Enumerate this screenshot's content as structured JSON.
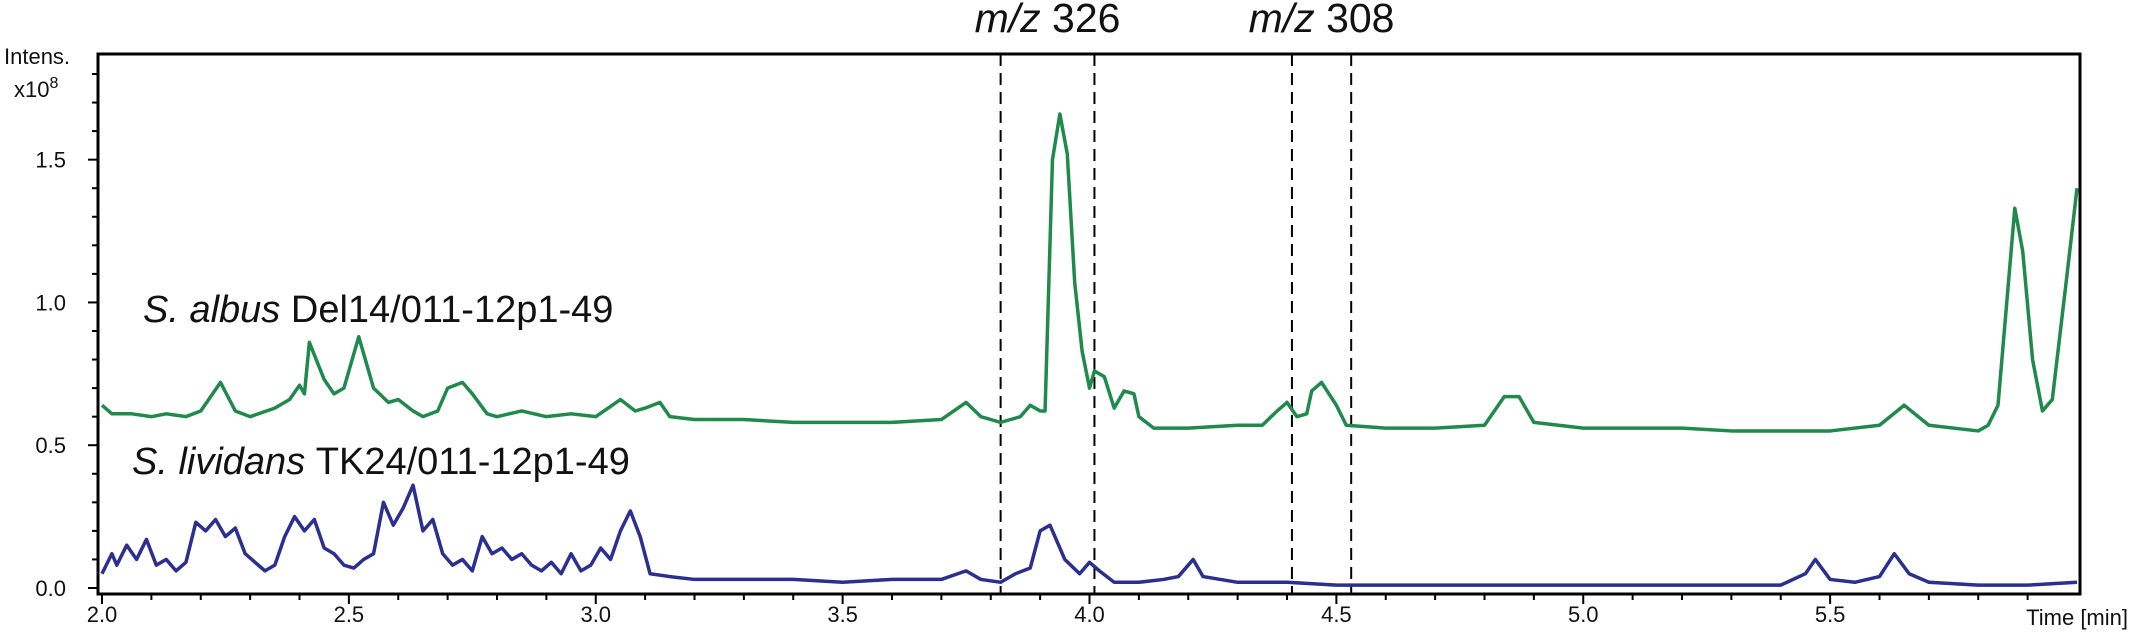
{
  "chart_data": {
    "type": "line",
    "y_label": "Intens.",
    "y_scale": {
      "base": "x10",
      "exp": "8"
    },
    "x_label": "Time [min]",
    "xlim": [
      2.0,
      6.0
    ],
    "xticks": [
      {
        "value": 2,
        "label": "2.0"
      },
      2.5,
      {
        "value": 3,
        "label": "3.0"
      },
      3.5,
      {
        "value": 4,
        "label": "4.0"
      },
      4.5,
      {
        "value": 5,
        "label": "5.0"
      },
      5.5
    ],
    "xminorticks": [
      2.1,
      2.2,
      2.3,
      2.4,
      2.6,
      2.7,
      2.8,
      2.9,
      3.1,
      3.2,
      3.3,
      3.4,
      3.6,
      3.7,
      3.8,
      3.9,
      4.1,
      4.2,
      4.3,
      4.4,
      4.6,
      4.7,
      4.8,
      4.9,
      5.1,
      5.2,
      5.3,
      5.4,
      5.6,
      5.7,
      5.8,
      5.9
    ],
    "ylim": [
      0,
      1.87
    ],
    "yticks": [
      {
        "value": 0,
        "label": "0.0"
      },
      0.5,
      {
        "value": 1,
        "label": "1.0"
      },
      1.5
    ],
    "yminorticks": [
      0.1,
      0.2,
      0.3,
      0.4,
      0.6,
      0.7,
      0.8,
      0.9,
      1.1,
      1.2,
      1.3,
      1.4,
      1.6,
      1.7,
      1.8
    ],
    "annotations": [
      {
        "italic": "m/z",
        "text": "326",
        "x": [
          3.82,
          4.01
        ]
      },
      {
        "italic": "m/z",
        "text": "308",
        "x": [
          4.41,
          4.53
        ]
      }
    ],
    "series": [
      {
        "label_italic": "S. albus",
        "label": "Del14/011-12p1-49",
        "color": "#1f8a4c",
        "x": [
          2.0,
          2.02,
          2.06,
          2.1,
          2.13,
          2.17,
          2.2,
          2.24,
          2.27,
          2.3,
          2.35,
          2.38,
          2.4,
          2.41,
          2.42,
          2.45,
          2.47,
          2.49,
          2.52,
          2.55,
          2.58,
          2.6,
          2.63,
          2.65,
          2.68,
          2.7,
          2.73,
          2.75,
          2.78,
          2.8,
          2.85,
          2.9,
          2.95,
          3.0,
          3.05,
          3.08,
          3.1,
          3.13,
          3.15,
          3.2,
          3.3,
          3.4,
          3.5,
          3.6,
          3.7,
          3.75,
          3.78,
          3.82,
          3.86,
          3.88,
          3.9,
          3.91,
          3.925,
          3.94,
          3.955,
          3.97,
          3.985,
          4.0,
          4.01,
          4.03,
          4.05,
          4.07,
          4.09,
          4.1,
          4.13,
          4.2,
          4.3,
          4.35,
          4.38,
          4.4,
          4.42,
          4.44,
          4.45,
          4.47,
          4.5,
          4.52,
          4.6,
          4.7,
          4.8,
          4.84,
          4.87,
          4.9,
          5.0,
          5.1,
          5.2,
          5.3,
          5.4,
          5.5,
          5.6,
          5.65,
          5.7,
          5.8,
          5.82,
          5.84,
          5.874,
          5.89,
          5.91,
          5.93,
          5.95,
          5.98,
          6.0
        ],
        "values": [
          0.64,
          0.61,
          0.61,
          0.6,
          0.61,
          0.6,
          0.62,
          0.72,
          0.62,
          0.6,
          0.63,
          0.66,
          0.71,
          0.68,
          0.86,
          0.73,
          0.68,
          0.7,
          0.88,
          0.7,
          0.65,
          0.66,
          0.62,
          0.6,
          0.62,
          0.7,
          0.72,
          0.68,
          0.61,
          0.6,
          0.62,
          0.6,
          0.61,
          0.6,
          0.66,
          0.62,
          0.63,
          0.65,
          0.6,
          0.59,
          0.59,
          0.58,
          0.58,
          0.58,
          0.59,
          0.65,
          0.6,
          0.58,
          0.6,
          0.64,
          0.62,
          0.62,
          1.5,
          1.66,
          1.52,
          1.07,
          0.83,
          0.7,
          0.76,
          0.74,
          0.63,
          0.69,
          0.68,
          0.6,
          0.56,
          0.56,
          0.57,
          0.57,
          0.62,
          0.65,
          0.6,
          0.61,
          0.69,
          0.72,
          0.64,
          0.57,
          0.56,
          0.56,
          0.57,
          0.67,
          0.67,
          0.58,
          0.56,
          0.56,
          0.56,
          0.55,
          0.55,
          0.55,
          0.57,
          0.64,
          0.57,
          0.55,
          0.57,
          0.64,
          1.33,
          1.18,
          0.8,
          0.62,
          0.66,
          1.1,
          1.4
        ]
      },
      {
        "label_italic": "S. lividans",
        "label": "TK24/011-12p1-49",
        "color": "#2b2f8f",
        "x": [
          2.0,
          2.02,
          2.03,
          2.05,
          2.07,
          2.09,
          2.11,
          2.13,
          2.15,
          2.17,
          2.19,
          2.21,
          2.23,
          2.25,
          2.27,
          2.29,
          2.31,
          2.33,
          2.35,
          2.37,
          2.39,
          2.41,
          2.43,
          2.45,
          2.47,
          2.49,
          2.51,
          2.53,
          2.55,
          2.57,
          2.59,
          2.61,
          2.63,
          2.65,
          2.67,
          2.69,
          2.71,
          2.73,
          2.75,
          2.77,
          2.79,
          2.81,
          2.83,
          2.85,
          2.87,
          2.89,
          2.91,
          2.93,
          2.95,
          2.97,
          2.99,
          3.01,
          3.03,
          3.05,
          3.07,
          3.09,
          3.11,
          3.15,
          3.2,
          3.3,
          3.4,
          3.5,
          3.6,
          3.7,
          3.75,
          3.78,
          3.82,
          3.85,
          3.88,
          3.9,
          3.92,
          3.95,
          3.98,
          4.0,
          4.02,
          4.05,
          4.1,
          4.15,
          4.18,
          4.21,
          4.23,
          4.3,
          4.4,
          4.5,
          4.6,
          4.8,
          5.0,
          5.2,
          5.4,
          5.45,
          5.47,
          5.5,
          5.55,
          5.6,
          5.63,
          5.66,
          5.7,
          5.8,
          5.9,
          6.0
        ],
        "values": [
          0.05,
          0.12,
          0.08,
          0.15,
          0.1,
          0.17,
          0.08,
          0.1,
          0.06,
          0.09,
          0.23,
          0.2,
          0.24,
          0.18,
          0.21,
          0.12,
          0.09,
          0.06,
          0.08,
          0.18,
          0.25,
          0.2,
          0.24,
          0.14,
          0.12,
          0.08,
          0.07,
          0.1,
          0.12,
          0.3,
          0.22,
          0.28,
          0.36,
          0.2,
          0.24,
          0.12,
          0.08,
          0.1,
          0.06,
          0.18,
          0.12,
          0.14,
          0.1,
          0.12,
          0.08,
          0.06,
          0.09,
          0.05,
          0.12,
          0.06,
          0.08,
          0.14,
          0.1,
          0.2,
          0.27,
          0.18,
          0.05,
          0.04,
          0.03,
          0.03,
          0.03,
          0.02,
          0.03,
          0.03,
          0.06,
          0.03,
          0.02,
          0.05,
          0.07,
          0.2,
          0.22,
          0.1,
          0.05,
          0.09,
          0.06,
          0.02,
          0.02,
          0.03,
          0.04,
          0.1,
          0.04,
          0.02,
          0.02,
          0.01,
          0.01,
          0.01,
          0.01,
          0.01,
          0.01,
          0.05,
          0.1,
          0.03,
          0.02,
          0.04,
          0.12,
          0.05,
          0.02,
          0.01,
          0.01,
          0.02
        ]
      }
    ]
  }
}
